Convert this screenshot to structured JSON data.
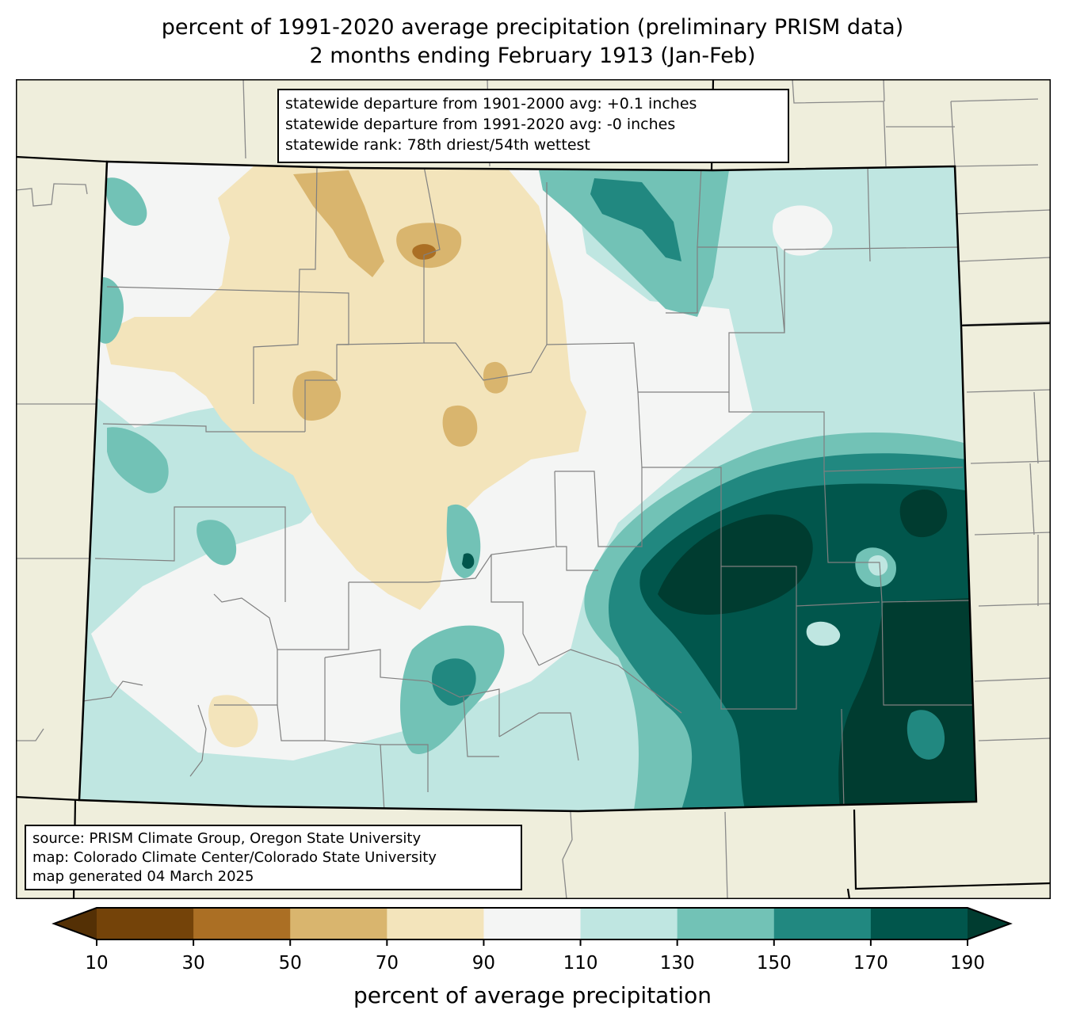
{
  "title": {
    "line1": "percent of 1991-2020 average precipitation (preliminary PRISM data)",
    "line2": "2 months ending February 1913 (Jan-Feb)"
  },
  "stats_box": {
    "line1": "statewide departure from 1901-2000 avg: +0.1 inches",
    "line2": "statewide departure from 1991-2020 avg: -0 inches",
    "line3": "statewide rank: 78th driest/54th wettest"
  },
  "credit_box": {
    "line1": "source: PRISM Climate Group, Oregon State University",
    "line2": "map: Colorado Climate Center/Colorado State University",
    "line3": "map generated 04 March 2025"
  },
  "colorbar": {
    "label": "percent of average precipitation",
    "ticks": [
      "10",
      "30",
      "50",
      "70",
      "90",
      "110",
      "130",
      "150",
      "170",
      "190"
    ],
    "under_color": "#543005",
    "over_color": "#003c30",
    "bins": [
      {
        "range": "10-30",
        "color": "#744309"
      },
      {
        "range": "30-50",
        "color": "#ab6f24"
      },
      {
        "range": "50-70",
        "color": "#d9b56e"
      },
      {
        "range": "70-90",
        "color": "#f3e4bb"
      },
      {
        "range": "90-110",
        "color": "#f4f5f4"
      },
      {
        "range": "110-130",
        "color": "#bfe6e1"
      },
      {
        "range": "130-150",
        "color": "#72c2b6"
      },
      {
        "range": "150-170",
        "color": "#218880"
      },
      {
        "range": "170-190",
        "color": "#01564c"
      }
    ]
  },
  "chart_data": {
    "type": "heatmap",
    "title": "percent of 1991-2020 average precipitation (preliminary PRISM data)",
    "subtitle": "2 months ending February 1913 (Jan-Feb)",
    "region": "Colorado",
    "variable": "percent of average precipitation",
    "levels": [
      10,
      30,
      50,
      70,
      90,
      110,
      130,
      150,
      170,
      190
    ],
    "extend": "both",
    "summary": {
      "departure_1901_2000_inches": 0.1,
      "departure_1991_2020_inches": 0,
      "rank_driest": 78,
      "rank_wettest": 54
    },
    "regional_pattern": [
      {
        "area": "northwest & north-central mountains",
        "category": "50-90"
      },
      {
        "area": "far western border",
        "category": "110-150"
      },
      {
        "area": "southwest",
        "category": "90-130"
      },
      {
        "area": "northeast plains",
        "category": "110-130"
      },
      {
        "area": "east-central & southeast plains",
        "category": "150-190+"
      }
    ]
  },
  "colors": {
    "land_outside": "#efeedc",
    "county_line": "#808080",
    "state_line": "#000000"
  }
}
